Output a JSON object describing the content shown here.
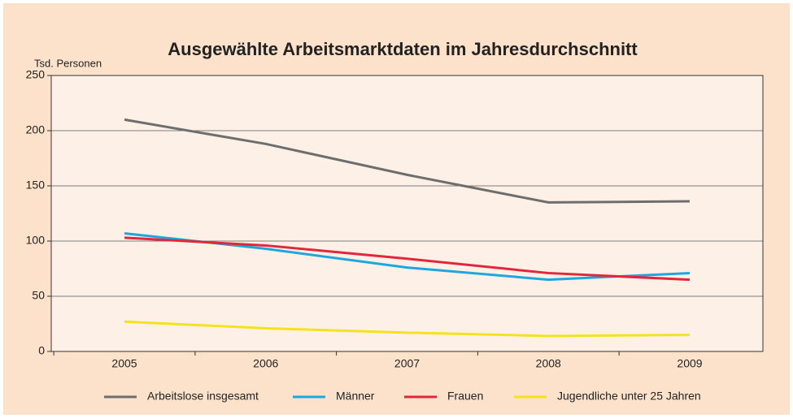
{
  "chart_data": {
    "type": "line",
    "title": "Ausgewählte Arbeitsmarktdaten im Jahresdurchschnitt",
    "y_label": "Tsd. Personen",
    "categories": [
      "2005",
      "2006",
      "2007",
      "2008",
      "2009"
    ],
    "series": [
      {
        "name": "Arbeitslose insgesamt",
        "color": "#6e6e6e",
        "values": [
          210,
          188,
          160,
          135,
          136
        ]
      },
      {
        "name": "Männer",
        "color": "#1ea7df",
        "values": [
          107,
          93,
          76,
          65,
          71
        ]
      },
      {
        "name": "Frauen",
        "color": "#e3263a",
        "values": [
          103,
          96,
          84,
          71,
          65
        ]
      },
      {
        "name": "Jugendliche unter 25 Jahren",
        "color": "#f5e21b",
        "values": [
          27,
          21,
          17,
          14,
          15
        ]
      }
    ],
    "ylim": [
      0,
      250
    ],
    "yticks": [
      0,
      50,
      100,
      150,
      200,
      250
    ],
    "grid": true,
    "legend": "bottom"
  }
}
